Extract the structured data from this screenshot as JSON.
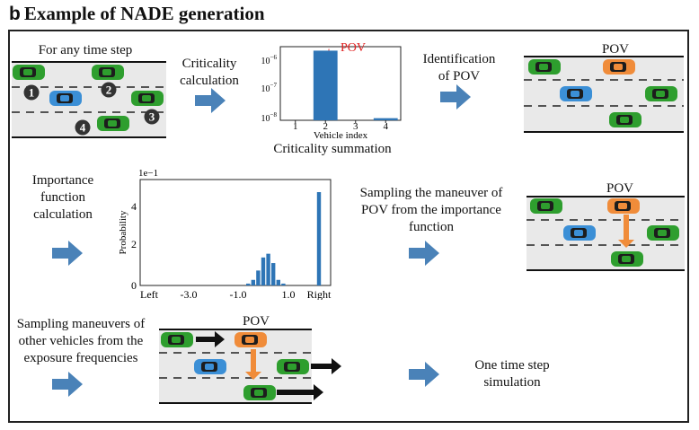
{
  "title": {
    "letter": "b",
    "text": "Example of NADE generation"
  },
  "colors": {
    "green": "#2e9e2e",
    "blue": "#3b8fd6",
    "orange": "#f08c3a",
    "bar_blue": "#2e75b6",
    "arrow_blue": "#4a82b8",
    "star_red": "#e02020",
    "label_red": "#e02020"
  },
  "step1": {
    "label": "For any time step",
    "markers": [
      "1",
      "2",
      "3",
      "4"
    ]
  },
  "step2": {
    "label_line1": "Criticality",
    "label_line2": "calculation"
  },
  "step3": {
    "caption": "Criticality summation",
    "pov": "POV"
  },
  "step4": {
    "label_line1": "Identification",
    "label_line2": "of POV"
  },
  "step5": {
    "pov": "POV"
  },
  "step6": {
    "label_line1": "Importance",
    "label_line2": "function",
    "label_line3": "calculation"
  },
  "step8": {
    "label_line1": "Sampling the maneuver of",
    "label_line2": "POV from the importance",
    "label_line3": "function"
  },
  "step9": {
    "pov": "POV"
  },
  "step10": {
    "label_line1": "Sampling maneuvers of",
    "label_line2": "other vehicles from the",
    "label_line3": "exposure frequencies"
  },
  "step11": {
    "pov": "POV"
  },
  "step12": {
    "label_line1": "One time step",
    "label_line2": "simulation"
  },
  "chart_data": [
    {
      "type": "bar",
      "xlabel": "Vehicle index",
      "categories": [
        "1",
        "2",
        "3",
        "4"
      ],
      "values": [
        null,
        1e-06,
        null,
        1.15e-08
      ],
      "yscale": "log",
      "ylim": [
        1e-08,
        1.3e-06
      ],
      "ytick_labels": [
        "10⁻⁸",
        "10⁻⁷",
        "10⁻⁶"
      ],
      "annotation": "POV"
    },
    {
      "type": "bar",
      "ylabel": "Probability",
      "y_multiplier": "1e−1",
      "ylim": [
        0,
        0.5
      ],
      "ytick_labels": [
        "0",
        "2",
        "4"
      ],
      "xtick_labels": [
        "Left",
        "-3.0",
        "-1.0",
        "1.0",
        "Right"
      ],
      "bins": [
        {
          "x": "Left",
          "value": 0.0
        },
        {
          "x": -0.6,
          "value": 0.01
        },
        {
          "x": -0.4,
          "value": 0.03
        },
        {
          "x": -0.2,
          "value": 0.08
        },
        {
          "x": 0.0,
          "value": 0.15
        },
        {
          "x": 0.2,
          "value": 0.17
        },
        {
          "x": 0.4,
          "value": 0.12
        },
        {
          "x": 0.6,
          "value": 0.03
        },
        {
          "x": 0.8,
          "value": 0.01
        },
        {
          "x": "Right",
          "value": 0.5
        }
      ]
    }
  ]
}
